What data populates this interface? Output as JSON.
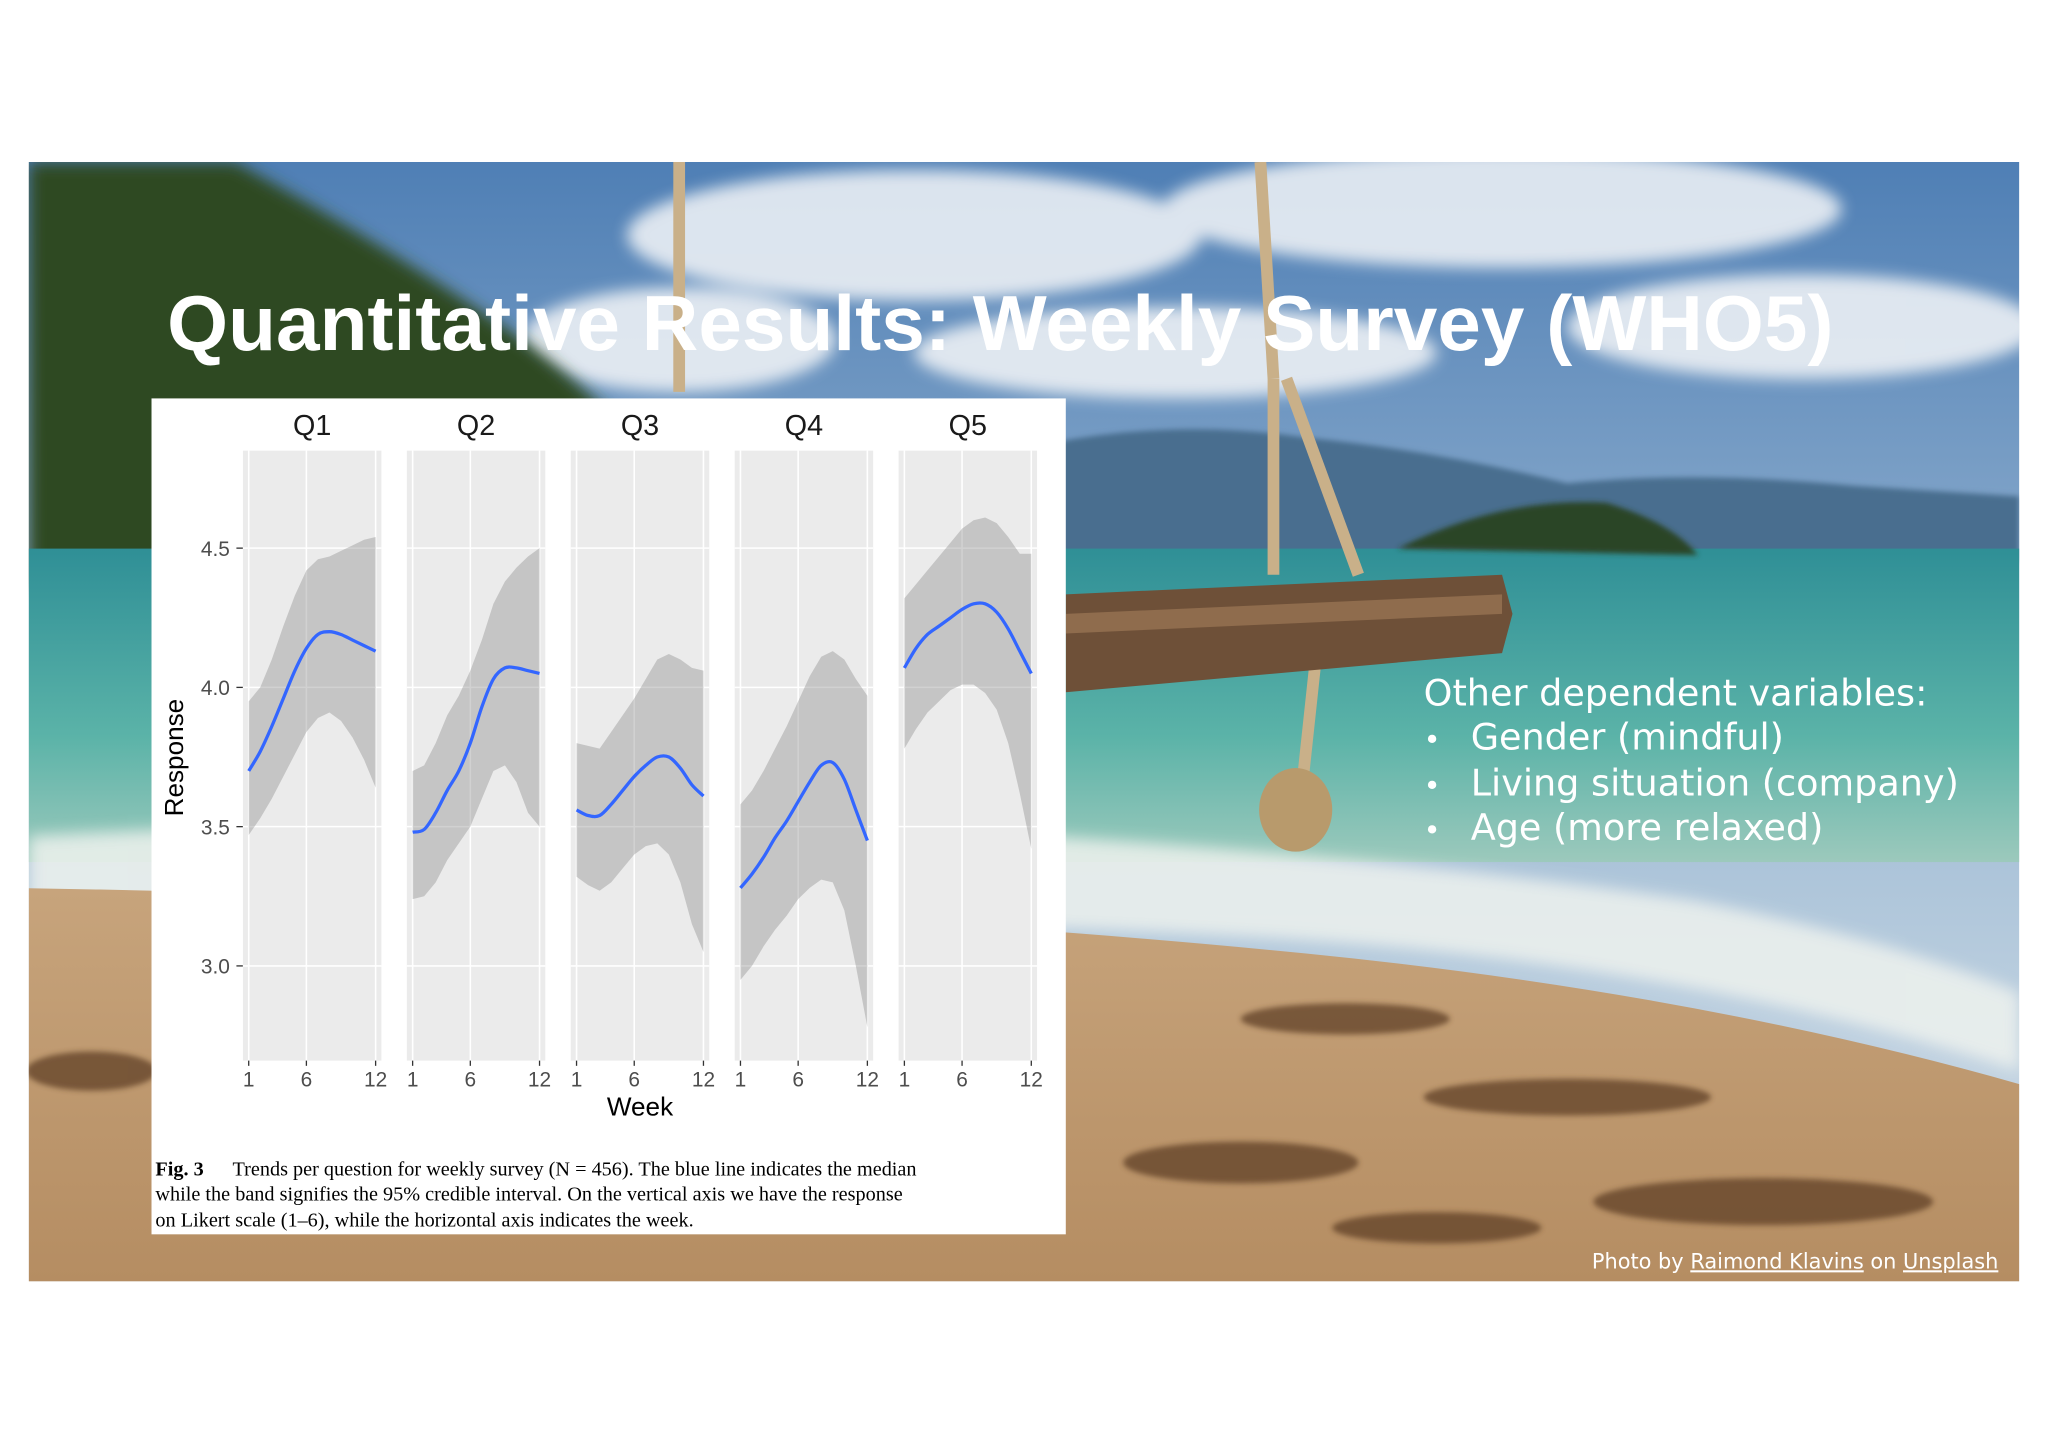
{
  "slide": {
    "title": "Quantitative Results: Weekly Survey (WHO5)",
    "bullets_heading": "Other dependent variables:",
    "bullets": [
      "Gender (mindful)",
      "Living situation (company)",
      "Age (more relaxed)"
    ],
    "credit": {
      "prefix": "Photo by",
      "author": "Raimond Klavins",
      "middle": "on",
      "site": "Unsplash"
    }
  },
  "chart_data": {
    "type": "line",
    "xlabel": "Week",
    "ylabel": "Response",
    "x": [
      1,
      2,
      3,
      4,
      5,
      6,
      7,
      8,
      9,
      10,
      11,
      12
    ],
    "xlim": [
      0.5,
      12.5
    ],
    "xticks": [
      1,
      6,
      12
    ],
    "ylim": [
      2.66,
      4.85
    ],
    "yticks": [
      {
        "value": 3,
        "label": "3.0"
      },
      {
        "value": 3.5,
        "label": "3.5"
      },
      {
        "value": 4,
        "label": "4.0"
      },
      {
        "value": 4.5,
        "label": "4.5"
      }
    ],
    "grid": true,
    "line_color": "#3366ff",
    "band_color": "#8c8c8c",
    "facets": [
      {
        "title": "Q1",
        "median": [
          3.7,
          3.77,
          3.86,
          3.96,
          4.06,
          4.14,
          4.19,
          4.2,
          4.19,
          4.17,
          4.15,
          4.13
        ],
        "lower": [
          3.47,
          3.53,
          3.6,
          3.68,
          3.76,
          3.84,
          3.89,
          3.91,
          3.88,
          3.82,
          3.74,
          3.64
        ],
        "upper": [
          3.95,
          4.0,
          4.1,
          4.22,
          4.33,
          4.42,
          4.46,
          4.47,
          4.49,
          4.51,
          4.53,
          4.54
        ]
      },
      {
        "title": "Q2",
        "median": [
          3.48,
          3.49,
          3.55,
          3.63,
          3.7,
          3.8,
          3.93,
          4.03,
          4.07,
          4.07,
          4.06,
          4.05
        ],
        "lower": [
          3.24,
          3.25,
          3.3,
          3.38,
          3.44,
          3.5,
          3.6,
          3.7,
          3.72,
          3.66,
          3.55,
          3.5
        ],
        "upper": [
          3.7,
          3.72,
          3.8,
          3.9,
          3.97,
          4.06,
          4.17,
          4.3,
          4.38,
          4.43,
          4.47,
          4.5
        ]
      },
      {
        "title": "Q3",
        "median": [
          3.56,
          3.54,
          3.54,
          3.58,
          3.63,
          3.68,
          3.72,
          3.75,
          3.75,
          3.71,
          3.65,
          3.61
        ],
        "lower": [
          3.32,
          3.29,
          3.27,
          3.3,
          3.35,
          3.4,
          3.43,
          3.44,
          3.4,
          3.3,
          3.15,
          3.05
        ],
        "upper": [
          3.8,
          3.79,
          3.78,
          3.84,
          3.9,
          3.96,
          4.03,
          4.1,
          4.12,
          4.1,
          4.07,
          4.06
        ]
      },
      {
        "title": "Q4",
        "median": [
          3.28,
          3.33,
          3.39,
          3.46,
          3.52,
          3.59,
          3.66,
          3.72,
          3.73,
          3.67,
          3.56,
          3.45
        ],
        "lower": [
          2.95,
          3.0,
          3.07,
          3.13,
          3.18,
          3.24,
          3.28,
          3.31,
          3.3,
          3.2,
          3.0,
          2.78
        ],
        "upper": [
          3.58,
          3.63,
          3.7,
          3.78,
          3.86,
          3.95,
          4.04,
          4.11,
          4.13,
          4.1,
          4.03,
          3.97
        ]
      },
      {
        "title": "Q5",
        "median": [
          4.07,
          4.14,
          4.19,
          4.22,
          4.25,
          4.28,
          4.3,
          4.3,
          4.27,
          4.21,
          4.13,
          4.05
        ],
        "lower": [
          3.78,
          3.85,
          3.91,
          3.95,
          3.99,
          4.01,
          4.01,
          3.98,
          3.92,
          3.8,
          3.62,
          3.42
        ],
        "upper": [
          4.32,
          4.37,
          4.42,
          4.47,
          4.52,
          4.57,
          4.6,
          4.61,
          4.59,
          4.54,
          4.48,
          4.48
        ]
      }
    ],
    "caption": {
      "label": "Fig. 3",
      "lines": [
        "Trends per question for weekly survey (N = 456). The blue line indicates the median",
        "while the band signifies the 95% credible interval. On the vertical axis we have the response",
        "on Likert scale (1–6), while the horizontal axis indicates the week."
      ]
    }
  }
}
